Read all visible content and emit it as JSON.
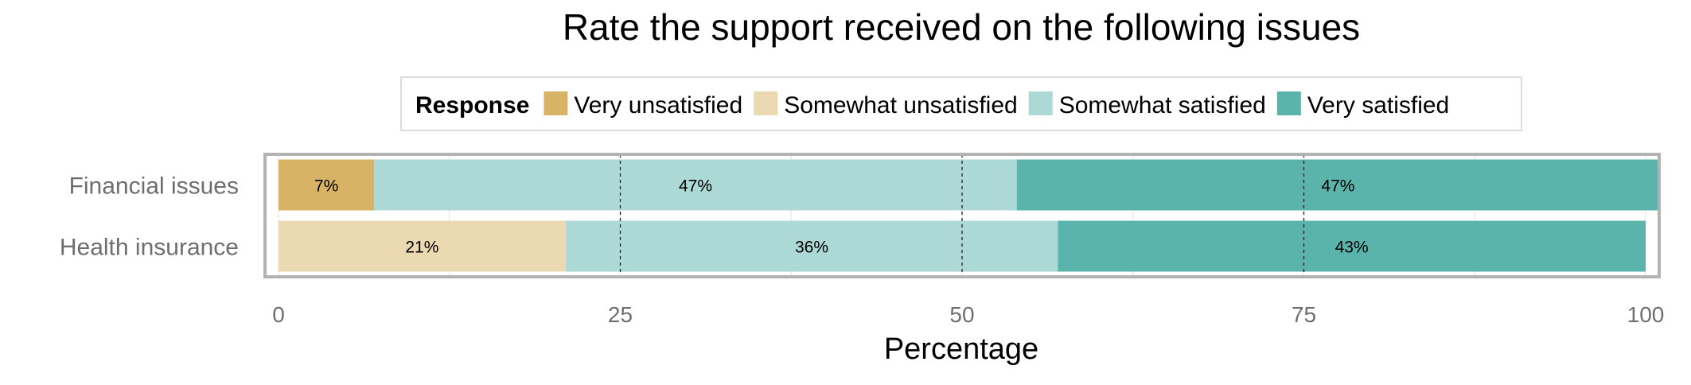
{
  "chart_data": {
    "type": "bar",
    "orientation": "horizontal",
    "stacked": true,
    "title": "Rate the support received on the following issues",
    "xlabel": "Percentage",
    "ylabel": "",
    "xlim": [
      0,
      100
    ],
    "xticks": [
      0,
      25,
      50,
      75,
      100
    ],
    "grid": true,
    "legend": {
      "title": "Response",
      "placement": "top"
    },
    "categories": [
      "Financial issues",
      "Health insurance"
    ],
    "series": [
      {
        "name": "Very unsatisfied",
        "color": "#D8B365",
        "values": [
          7,
          0
        ],
        "labels": [
          "7%",
          ""
        ]
      },
      {
        "name": "Somewhat unsatisfied",
        "color": "#EBD9B2",
        "values": [
          0,
          21
        ],
        "labels": [
          "",
          "21%"
        ]
      },
      {
        "name": "Somewhat satisfied",
        "color": "#ACD9D5",
        "values": [
          47,
          36
        ],
        "labels": [
          "47%",
          "36%"
        ]
      },
      {
        "name": "Very satisfied",
        "color": "#5AB4AC",
        "values": [
          47,
          43
        ],
        "labels": [
          "47%",
          "43%"
        ]
      }
    ]
  }
}
